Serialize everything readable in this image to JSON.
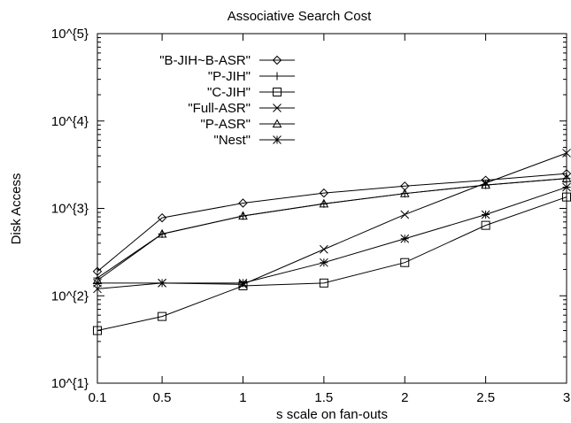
{
  "chart_data": {
    "type": "line",
    "title": "Associative Search Cost",
    "xlabel": "s scale on fan-outs",
    "ylabel": "Disk Access",
    "y_scale": "log",
    "xlim": [
      0.1,
      3
    ],
    "ylim": [
      10,
      100000
    ],
    "x_ticks": [
      "0.1",
      "0.5",
      "1",
      "1.5",
      "2",
      "2.5",
      "3"
    ],
    "y_ticks": [
      "10^{1}",
      "10^{2}",
      "10^{3}",
      "10^{4}",
      "10^{5}"
    ],
    "legend_position": "top-center",
    "x": [
      0.1,
      0.5,
      1,
      1.5,
      2,
      2.5,
      3
    ],
    "series": [
      {
        "name": "\"B-JIH~B-ASR\"",
        "marker": "diamond",
        "values": [
          190,
          780,
          1150,
          1500,
          1800,
          2100,
          2500
        ]
      },
      {
        "name": "\"P-JIH\"",
        "marker": "plus",
        "values": [
          160,
          510,
          820,
          1130,
          1480,
          1850,
          2200
        ]
      },
      {
        "name": "\"C-JIH\"",
        "marker": "square",
        "values": [
          40,
          58,
          130,
          140,
          240,
          640,
          1350
        ]
      },
      {
        "name": "\"Full-ASR\"",
        "marker": "cross",
        "values": [
          120,
          140,
          135,
          340,
          850,
          1950,
          4300
        ]
      },
      {
        "name": "\"P-ASR\"",
        "marker": "triangle",
        "values": [
          150,
          510,
          820,
          1130,
          1480,
          1850,
          2200
        ]
      },
      {
        "name": "\"Nest\"",
        "marker": "star",
        "values": [
          140,
          140,
          140,
          240,
          450,
          850,
          1750
        ]
      }
    ]
  }
}
